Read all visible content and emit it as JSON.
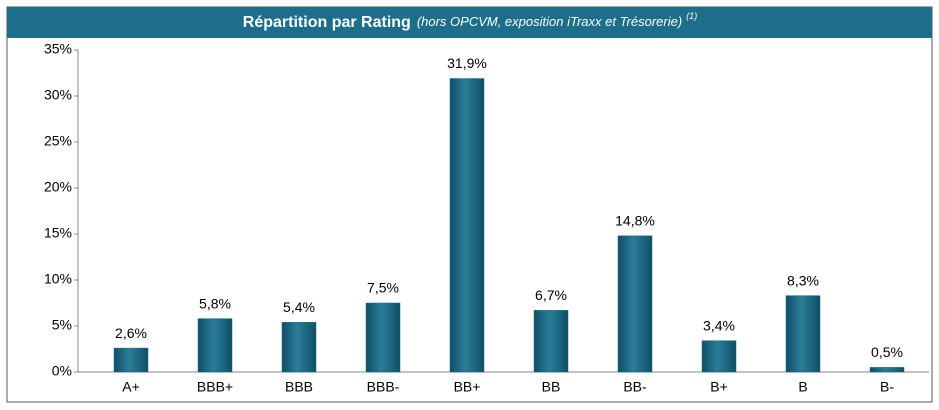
{
  "chart_data": {
    "type": "bar",
    "title": "Répartition par Rating",
    "subtitle": "(hors OPCVM, exposition iTraxx et Trésorerie)",
    "note": "(1)",
    "categories": [
      "A+",
      "BBB+",
      "BBB",
      "BBB-",
      "BB+",
      "BB",
      "BB-",
      "B+",
      "B",
      "B-"
    ],
    "values": [
      2.6,
      5.8,
      5.4,
      7.5,
      31.9,
      6.7,
      14.8,
      3.4,
      8.3,
      0.5
    ],
    "value_labels": [
      "2,6%",
      "5,8%",
      "5,4%",
      "7,5%",
      "31,9%",
      "6,7%",
      "14,8%",
      "3,4%",
      "8,3%",
      "0,5%"
    ],
    "color": "#1b6983",
    "ylim": [
      0,
      35
    ],
    "yticks": [
      {
        "value": 0,
        "label": "0%"
      },
      {
        "value": 5,
        "label": "5%"
      },
      {
        "value": 10,
        "label": "10%"
      },
      {
        "value": 15,
        "label": "15%"
      },
      {
        "value": 20,
        "label": "20%"
      },
      {
        "value": 25,
        "label": "25%"
      },
      {
        "value": 30,
        "label": "30%"
      },
      {
        "value": 35,
        "label": "35%"
      }
    ],
    "grid": false
  }
}
